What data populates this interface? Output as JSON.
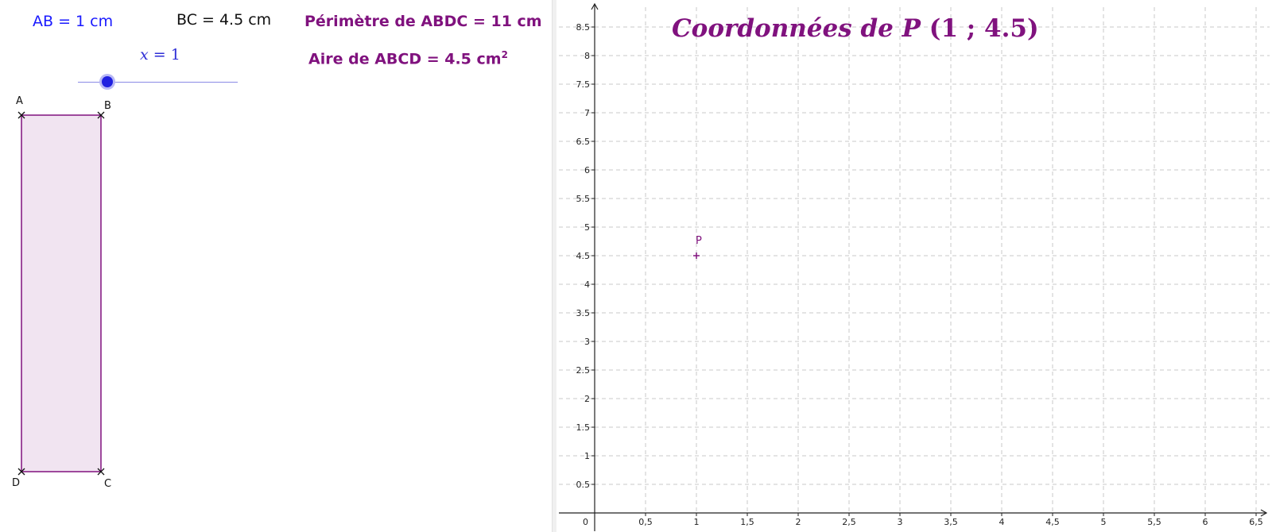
{
  "left_panel": {
    "ab": "AB = 1 cm",
    "bc": "BC = 4.5 cm",
    "slider": {
      "label_var": "x = ",
      "value": "1",
      "min": 0,
      "max": 6,
      "fraction": 0.167
    },
    "perimeter": "Périmètre de ABDC = 11 cm",
    "area": "Aire de ABCD = 4.5 cm",
    "area_exponent": "2",
    "rectangle": {
      "points": {
        "a": "A",
        "b": "B",
        "c": "C",
        "d": "D"
      },
      "fill_color": "#f1e4f1",
      "stroke_color": "#80127e"
    }
  },
  "right_panel": {
    "title": "Coordonnées de P ",
    "title_coords": "(1 ; 4.5)",
    "point_label": "P",
    "chart_data": {
      "type": "scatter",
      "x_ticks": [
        "0,5",
        "1",
        "1,5",
        "2",
        "2,5",
        "3",
        "3,5",
        "4",
        "4,5",
        "5",
        "5,5",
        "6",
        "6,5"
      ],
      "y_ticks": [
        "0.5",
        "1",
        "1.5",
        "2",
        "2.5",
        "3",
        "3.5",
        "4",
        "4.5",
        "5",
        "5.5",
        "6",
        "6.5",
        "7",
        "7.5",
        "8",
        "8.5"
      ],
      "origin_label": "0",
      "xlim": [
        -0.35,
        6.8
      ],
      "ylim": [
        0,
        8.9
      ],
      "grid": true,
      "series": [
        {
          "points": [
            {
              "x": 1,
              "y": 4.5
            }
          ],
          "color": "#80127e"
        }
      ]
    }
  }
}
